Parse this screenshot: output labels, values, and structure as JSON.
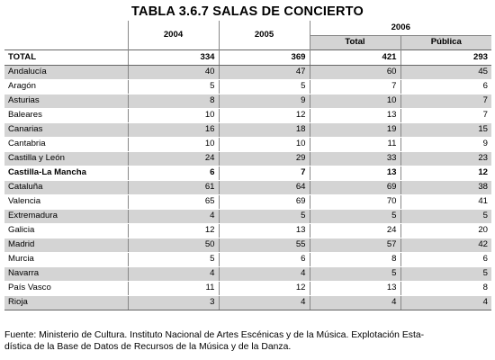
{
  "title": "TABLA 3.6.7 SALAS DE CONCIERTO",
  "header": {
    "col_2004": "2004",
    "col_2005": "2005",
    "group_2006": "2006",
    "sub_total": "Total",
    "sub_publica": "Pública"
  },
  "total": {
    "label": "TOTAL",
    "v2004": "334",
    "v2005": "369",
    "total": "421",
    "publica": "293"
  },
  "rows": [
    {
      "label": "Andalucía",
      "v2004": "40",
      "v2005": "47",
      "total": "60",
      "publica": "45"
    },
    {
      "label": "Aragón",
      "v2004": "5",
      "v2005": "5",
      "total": "7",
      "publica": "6"
    },
    {
      "label": "Asturias",
      "v2004": "8",
      "v2005": "9",
      "total": "10",
      "publica": "7"
    },
    {
      "label": "Baleares",
      "v2004": "10",
      "v2005": "12",
      "total": "13",
      "publica": "7"
    },
    {
      "label": "Canarias",
      "v2004": "16",
      "v2005": "18",
      "total": "19",
      "publica": "15"
    },
    {
      "label": "Cantabria",
      "v2004": "10",
      "v2005": "10",
      "total": "11",
      "publica": "9"
    },
    {
      "label": "Castilla y León",
      "v2004": "24",
      "v2005": "29",
      "total": "33",
      "publica": "23"
    },
    {
      "label": "Castilla-La Mancha",
      "v2004": "6",
      "v2005": "7",
      "total": "13",
      "publica": "12"
    },
    {
      "label": "Cataluña",
      "v2004": "61",
      "v2005": "64",
      "total": "69",
      "publica": "38"
    },
    {
      "label": "Valencia",
      "v2004": "65",
      "v2005": "69",
      "total": "70",
      "publica": "41"
    },
    {
      "label": "Extremadura",
      "v2004": "4",
      "v2005": "5",
      "total": "5",
      "publica": "5"
    },
    {
      "label": "Galicia",
      "v2004": "12",
      "v2005": "13",
      "total": "24",
      "publica": "20"
    },
    {
      "label": "Madrid",
      "v2004": "50",
      "v2005": "55",
      "total": "57",
      "publica": "42"
    },
    {
      "label": "Murcia",
      "v2004": "5",
      "v2005": "6",
      "total": "8",
      "publica": "6"
    },
    {
      "label": "Navarra",
      "v2004": "4",
      "v2005": "4",
      "total": "5",
      "publica": "5"
    },
    {
      "label": "País Vasco",
      "v2004": "11",
      "v2005": "12",
      "total": "13",
      "publica": "8"
    },
    {
      "label": "Rioja",
      "v2004": "3",
      "v2005": "4",
      "total": "4",
      "publica": "4"
    }
  ],
  "source_line1": "Fuente: Ministerio de Cultura. Instituto Nacional de Artes Escénicas y de la Música. Explotación Esta-",
  "source_line2": "dística de la Base de Datos de Recursos de la Música y de la Danza."
}
